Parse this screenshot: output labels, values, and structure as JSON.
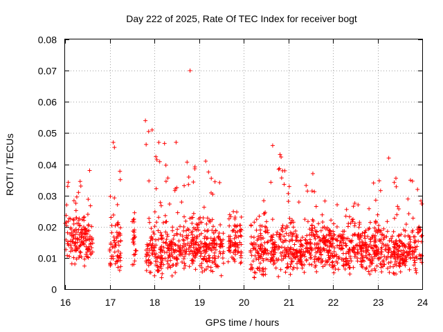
{
  "chart_data": {
    "type": "scatter",
    "title": "Day 222 of 2025, Rate Of TEC Index for receiver bogt",
    "xlabel": "GPS time / hours",
    "ylabel": "ROTI / TECUs",
    "xlim": [
      16,
      24
    ],
    "ylim": [
      0,
      0.08
    ],
    "xticks": [
      "16",
      "17",
      "18",
      "19",
      "20",
      "21",
      "22",
      "23",
      "24"
    ],
    "yticks": [
      "0",
      "0.01",
      "0.02",
      "0.03",
      "0.04",
      "0.05",
      "0.06",
      "0.07",
      "0.08"
    ],
    "grid": true,
    "marker": "plus",
    "color": "#ff0000",
    "segments": [
      {
        "x": [
          16.0,
          16.62
        ],
        "y": [
          0.007,
          0.038
        ]
      },
      {
        "x": [
          17.0,
          17.25
        ],
        "y": [
          0.005,
          0.047
        ]
      },
      {
        "x": [
          17.5,
          17.6
        ],
        "y": [
          0.006,
          0.03
        ]
      },
      {
        "x": [
          17.8,
          18.5
        ],
        "y": [
          0.003,
          0.054
        ]
      },
      {
        "x": [
          18.5,
          19.0
        ],
        "y": [
          0.005,
          0.043
        ]
      },
      {
        "x": [
          19.0,
          19.55
        ],
        "y": [
          0.004,
          0.041
        ]
      },
      {
        "x": [
          19.65,
          19.95
        ],
        "y": [
          0.008,
          0.026
        ]
      },
      {
        "x": [
          20.15,
          20.55
        ],
        "y": [
          0.003,
          0.03
        ]
      },
      {
        "x": [
          20.6,
          21.0
        ],
        "y": [
          0.004,
          0.046
        ]
      },
      {
        "x": [
          21.0,
          21.6
        ],
        "y": [
          0.004,
          0.037
        ]
      },
      {
        "x": [
          21.6,
          22.2
        ],
        "y": [
          0.004,
          0.03
        ]
      },
      {
        "x": [
          22.2,
          22.9
        ],
        "y": [
          0.004,
          0.028
        ]
      },
      {
        "x": [
          22.9,
          23.4
        ],
        "y": [
          0.004,
          0.043
        ]
      },
      {
        "x": [
          23.4,
          24.0
        ],
        "y": [
          0.004,
          0.036
        ]
      }
    ],
    "points": [
      {
        "x": 18.8,
        "y": 0.07
      },
      {
        "x": 17.8,
        "y": 0.054
      },
      {
        "x": 17.95,
        "y": 0.051
      },
      {
        "x": 17.08,
        "y": 0.047
      },
      {
        "x": 18.1,
        "y": 0.047
      },
      {
        "x": 20.65,
        "y": 0.046
      },
      {
        "x": 23.25,
        "y": 0.042
      },
      {
        "x": 19.15,
        "y": 0.041
      },
      {
        "x": 16.55,
        "y": 0.038
      },
      {
        "x": 21.55,
        "y": 0.037
      }
    ]
  }
}
